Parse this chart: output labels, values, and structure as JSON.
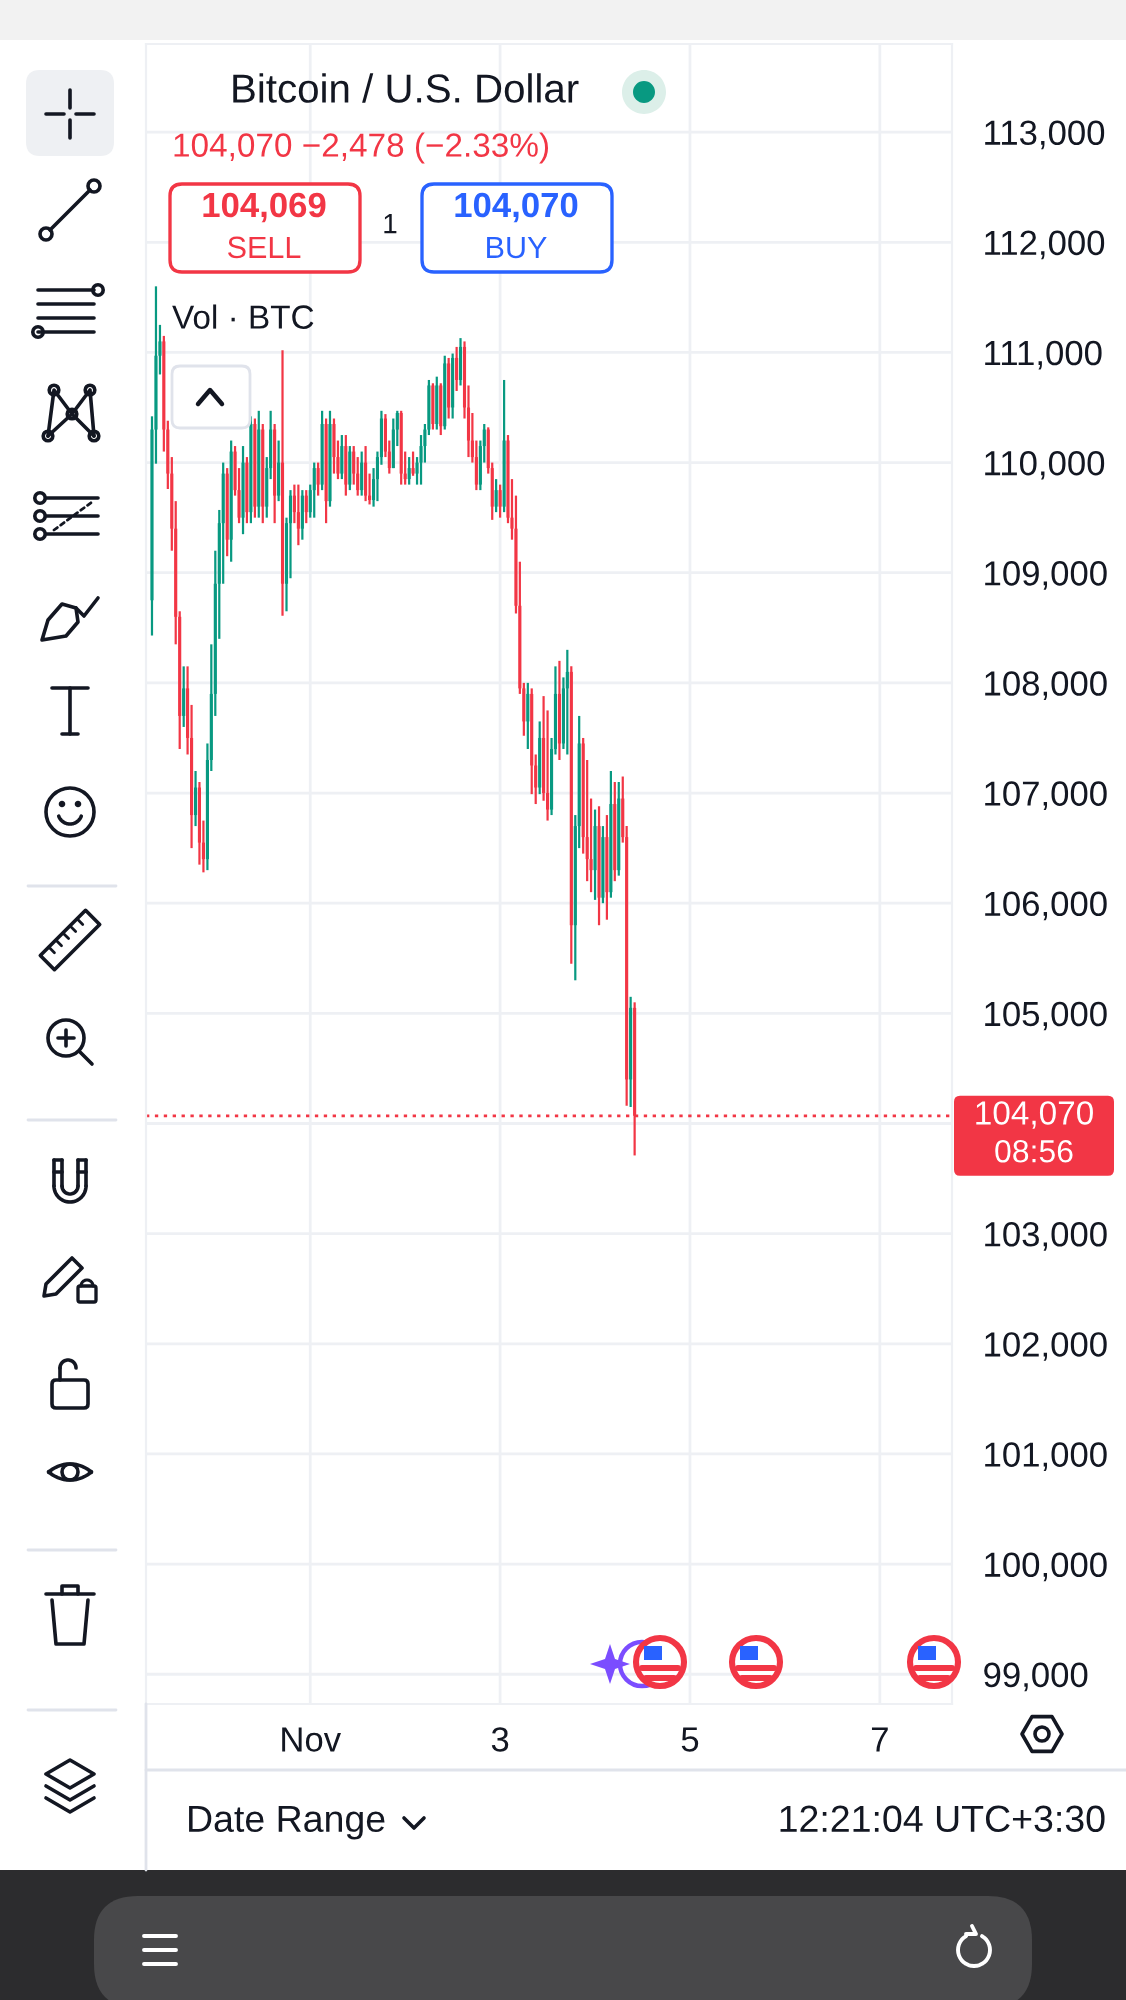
{
  "chart_data": {
    "type": "candlestick",
    "title": "Bitcoin / U.S. Dollar",
    "subtitle": "104,070 −2,478 (−2.33%)",
    "x": [
      -0.667,
      -0.625,
      -0.583,
      -0.542,
      -0.5,
      -0.458,
      -0.417,
      -0.375,
      -0.333,
      -0.292,
      -0.25,
      -0.208,
      -0.167,
      -0.125,
      -0.083,
      -0.042,
      0,
      0.042,
      0.083,
      0.125,
      0.167,
      0.208,
      0.25,
      0.292,
      0.333,
      0.375,
      0.417,
      0.458,
      0.5,
      0.542,
      0.583,
      0.625,
      0.667,
      0.708,
      0.75,
      0.792,
      0.833,
      0.875,
      0.917,
      0.958,
      1,
      1.042,
      1.083,
      1.125,
      1.167,
      1.208,
      1.25,
      1.292,
      1.333,
      1.375,
      1.417,
      1.458,
      1.5,
      1.542,
      1.583,
      1.625,
      1.667,
      1.708,
      1.75,
      1.792,
      1.833,
      1.875,
      1.917,
      1.958,
      2,
      2.042,
      2.083,
      2.125,
      2.167,
      2.208,
      2.25,
      2.292,
      2.333,
      2.375,
      2.417,
      2.458,
      2.5,
      2.542,
      2.583,
      2.625,
      2.667,
      2.708,
      2.75,
      2.792,
      2.833,
      2.875,
      2.917,
      2.958,
      3,
      3.042,
      3.083,
      3.125,
      3.167,
      3.208,
      3.25,
      3.292,
      3.333,
      3.375,
      3.417,
      3.458,
      3.5,
      3.542,
      3.583,
      3.625,
      3.667,
      3.708,
      3.75,
      3.792,
      3.833,
      3.875,
      3.917,
      3.958,
      4,
      4.042,
      4.083,
      4.125,
      4.167,
      4.208,
      4.25,
      4.292,
      4.333,
      4.375,
      4.417
    ],
    "ohlc": [
      [
        108750,
        110420,
        108430,
        110300
      ],
      [
        110300,
        111600,
        109990,
        110970
      ],
      [
        110970,
        111250,
        110800,
        111100
      ],
      [
        111100,
        111150,
        110100,
        110300
      ],
      [
        110300,
        110380,
        109760,
        109900
      ],
      [
        109900,
        110050,
        109200,
        109400
      ],
      [
        109400,
        109650,
        108350,
        108600
      ],
      [
        108600,
        108650,
        107400,
        107700
      ],
      [
        107700,
        108150,
        107600,
        107950
      ],
      [
        107950,
        108150,
        107350,
        107500
      ],
      [
        107500,
        107800,
        106500,
        106800
      ],
      [
        106800,
        107200,
        106700,
        107050
      ],
      [
        107050,
        107100,
        106350,
        106550
      ],
      [
        106550,
        106750,
        106280,
        106400
      ],
      [
        106400,
        107450,
        106300,
        107300
      ],
      [
        107300,
        108350,
        107200,
        107900
      ],
      [
        107900,
        109200,
        107700,
        108900
      ],
      [
        108900,
        109570,
        108400,
        109450
      ],
      [
        109450,
        110000,
        108900,
        109900
      ],
      [
        109900,
        109950,
        109150,
        109300
      ],
      [
        109300,
        110200,
        109100,
        110100
      ],
      [
        110100,
        110150,
        109700,
        109750
      ],
      [
        109750,
        109950,
        109450,
        109500
      ],
      [
        109500,
        110150,
        109350,
        110000
      ],
      [
        110000,
        110050,
        109450,
        109550
      ],
      [
        109550,
        110420,
        109450,
        110350
      ],
      [
        110350,
        110400,
        109500,
        109600
      ],
      [
        109600,
        110470,
        109500,
        110300
      ],
      [
        110300,
        110350,
        109450,
        109600
      ],
      [
        109600,
        110050,
        109500,
        109950
      ],
      [
        109950,
        110470,
        109850,
        110300
      ],
      [
        110300,
        110350,
        109450,
        109700
      ],
      [
        109700,
        110200,
        109650,
        110000
      ],
      [
        110000,
        111020,
        108610,
        108900
      ],
      [
        108900,
        109500,
        108650,
        109450
      ],
      [
        109450,
        109750,
        108950,
        109700
      ],
      [
        109700,
        109800,
        109450,
        109550
      ],
      [
        109550,
        109800,
        109250,
        109400
      ],
      [
        109400,
        109750,
        109300,
        109700
      ],
      [
        109700,
        109750,
        109450,
        109550
      ],
      [
        109550,
        109800,
        109500,
        109750
      ],
      [
        109750,
        110000,
        109500,
        109950
      ],
      [
        109950,
        110000,
        109700,
        109800
      ],
      [
        109800,
        110470,
        109750,
        110350
      ],
      [
        110350,
        110400,
        109450,
        109650
      ],
      [
        109650,
        110470,
        109600,
        110350
      ],
      [
        110350,
        110400,
        109900,
        110050
      ],
      [
        110050,
        110200,
        109850,
        109900
      ],
      [
        109900,
        110250,
        109850,
        110150
      ],
      [
        110150,
        110250,
        109700,
        109800
      ],
      [
        109800,
        110150,
        109750,
        110100
      ],
      [
        110100,
        110150,
        109800,
        109900
      ],
      [
        109900,
        110050,
        109700,
        109750
      ],
      [
        109750,
        110100,
        109700,
        110000
      ],
      [
        110000,
        110150,
        109650,
        109700
      ],
      [
        109700,
        109900,
        109620,
        109660
      ],
      [
        109660,
        109950,
        109600,
        109850
      ],
      [
        109850,
        110100,
        109650,
        110050
      ],
      [
        110050,
        110470,
        109980,
        110400
      ],
      [
        110400,
        110440,
        110050,
        110100
      ],
      [
        110100,
        110200,
        109900,
        109950
      ],
      [
        109950,
        110400,
        109950,
        110300
      ],
      [
        110300,
        110470,
        110150,
        110450
      ],
      [
        110450,
        110470,
        109800,
        109900
      ],
      [
        109900,
        110100,
        109800,
        109850
      ],
      [
        109850,
        110050,
        109800,
        109950
      ],
      [
        109950,
        110100,
        109880,
        109900
      ],
      [
        109900,
        110050,
        109800,
        110000
      ],
      [
        110000,
        110250,
        109800,
        110150
      ],
      [
        110150,
        110350,
        110000,
        110300
      ],
      [
        110300,
        110750,
        110250,
        110700
      ],
      [
        110700,
        110720,
        110300,
        110350
      ],
      [
        110350,
        110780,
        110300,
        110700
      ],
      [
        110700,
        110720,
        110250,
        110330
      ],
      [
        110330,
        110970,
        110300,
        110900
      ],
      [
        110900,
        110950,
        110400,
        110500
      ],
      [
        110500,
        110990,
        110400,
        110950
      ],
      [
        110950,
        111050,
        110650,
        110750
      ],
      [
        110750,
        111130,
        110700,
        111050
      ],
      [
        111050,
        111100,
        110400,
        110500
      ],
      [
        110500,
        110700,
        110050,
        110200
      ],
      [
        110200,
        110450,
        110000,
        110050
      ],
      [
        110050,
        110200,
        109750,
        109800
      ],
      [
        109800,
        110200,
        109750,
        110150
      ],
      [
        110150,
        110350,
        110000,
        110300
      ],
      [
        110300,
        110320,
        109900,
        109950
      ],
      [
        109950,
        110000,
        109480,
        109600
      ],
      [
        109600,
        109850,
        109550,
        109750
      ],
      [
        109750,
        109800,
        109500,
        109600
      ],
      [
        109600,
        110750,
        109550,
        110200
      ],
      [
        110200,
        110250,
        109450,
        109500
      ],
      [
        109500,
        109850,
        109300,
        109400
      ],
      [
        109400,
        109700,
        108630,
        108700
      ],
      [
        108700,
        109100,
        107900,
        107950
      ],
      [
        107950,
        108000,
        107520,
        107650
      ],
      [
        107650,
        108000,
        107400,
        107900
      ],
      [
        107900,
        107950,
        106990,
        107250
      ],
      [
        107250,
        107350,
        106900,
        107050
      ],
      [
        107050,
        107650,
        106990,
        107500
      ],
      [
        107500,
        107880,
        106930,
        107000
      ],
      [
        107000,
        107750,
        106750,
        106850
      ],
      [
        106850,
        107500,
        106800,
        107400
      ],
      [
        107400,
        108150,
        107350,
        107900
      ],
      [
        107900,
        108200,
        107300,
        107450
      ],
      [
        107450,
        108050,
        107400,
        107950
      ],
      [
        107950,
        108300,
        107350,
        108100
      ],
      [
        108100,
        108150,
        105450,
        105800
      ],
      [
        105800,
        106800,
        105300,
        106700
      ],
      [
        106700,
        107700,
        106500,
        107450
      ],
      [
        107450,
        107500,
        106450,
        106600
      ],
      [
        106600,
        107300,
        106200,
        106400
      ],
      [
        106400,
        106950,
        106100,
        106300
      ],
      [
        106300,
        106850,
        106030,
        106700
      ],
      [
        106700,
        106880,
        105800,
        106050
      ],
      [
        106050,
        106700,
        106000,
        106600
      ],
      [
        106600,
        106800,
        105850,
        106100
      ],
      [
        106100,
        107200,
        106050,
        106900
      ],
      [
        106900,
        107100,
        106200,
        106300
      ],
      [
        106300,
        107100,
        106250,
        106950
      ],
      [
        106950,
        107150,
        106550,
        106600
      ],
      [
        106600,
        106700,
        104160,
        104400
      ],
      [
        104400,
        105150,
        104150,
        105050
      ],
      [
        105050,
        105100,
        103710,
        104070
      ]
    ],
    "colors": [
      "#089981",
      "#089981",
      "#089981",
      "#f23645",
      "#f23645",
      "#f23645",
      "#f23645",
      "#f23645",
      "#089981",
      "#f23645",
      "#f23645",
      "#089981",
      "#f23645",
      "#f23645",
      "#089981",
      "#089981",
      "#089981",
      "#089981",
      "#089981",
      "#f23645",
      "#089981",
      "#f23645",
      "#f23645",
      "#089981",
      "#f23645",
      "#089981",
      "#f23645",
      "#089981",
      "#f23645",
      "#089981",
      "#089981",
      "#f23645",
      "#089981",
      "#f23645",
      "#089981",
      "#089981",
      "#f23645",
      "#f23645",
      "#089981",
      "#f23645",
      "#089981",
      "#089981",
      "#f23645",
      "#089981",
      "#f23645",
      "#089981",
      "#f23645",
      "#f23645",
      "#089981",
      "#f23645",
      "#089981",
      "#f23645",
      "#f23645",
      "#089981",
      "#f23645",
      "#f23645",
      "#089981",
      "#089981",
      "#089981",
      "#f23645",
      "#f23645",
      "#089981",
      "#089981",
      "#f23645",
      "#f23645",
      "#089981",
      "#f23645",
      "#089981",
      "#089981",
      "#089981",
      "#089981",
      "#f23645",
      "#089981",
      "#f23645",
      "#089981",
      "#f23645",
      "#089981",
      "#f23645",
      "#089981",
      "#f23645",
      "#f23645",
      "#f23645",
      "#f23645",
      "#089981",
      "#089981",
      "#f23645",
      "#f23645",
      "#089981",
      "#f23645",
      "#089981",
      "#f23645",
      "#f23645",
      "#f23645",
      "#f23645",
      "#f23645",
      "#089981",
      "#f23645",
      "#f23645",
      "#089981",
      "#f23645",
      "#f23645",
      "#089981",
      "#089981",
      "#f23645",
      "#089981",
      "#089981",
      "#f23645",
      "#089981",
      "#089981",
      "#f23645",
      "#f23645",
      "#f23645",
      "#089981",
      "#f23645",
      "#089981",
      "#f23645",
      "#089981",
      "#f23645",
      "#089981",
      "#f23645",
      "#f23645",
      "#089981",
      "#f23645"
    ],
    "xlim": [
      -0.73,
      7.76
    ],
    "xticks": [
      {
        "value": 1,
        "label": "Nov"
      },
      3,
      5,
      7
    ],
    "ylim": [
      98730,
      113800
    ],
    "yticks": [
      {
        "value": 99000,
        "label": "99,000"
      },
      {
        "value": 100000,
        "label": "100,000"
      },
      {
        "value": 101000,
        "label": "101,000"
      },
      {
        "value": 102000,
        "label": "102,000"
      },
      {
        "value": 103000,
        "label": "103,000"
      },
      {
        "value": 104000,
        "label": null
      },
      {
        "value": 105000,
        "label": "105,000"
      },
      {
        "value": 106000,
        "label": "106,000"
      },
      {
        "value": 107000,
        "label": "107,000"
      },
      {
        "value": 108000,
        "label": "108,000"
      },
      {
        "value": 109000,
        "label": "109,000"
      },
      {
        "value": 110000,
        "label": "110,000"
      },
      {
        "value": 111000,
        "label": "111,000"
      },
      {
        "value": 112000,
        "label": "112,000"
      },
      {
        "value": 113000,
        "label": "113,000"
      }
    ],
    "grid": true,
    "ref_lines": [
      {
        "axis": "y",
        "value": 104070,
        "label": "104,070",
        "color": "#f23645",
        "line_style": "dotted"
      }
    ],
    "annotations": [
      "104,069",
      "SELL",
      "1",
      "104,070",
      "BUY",
      "Vol · BTC",
      "08:56",
      "Date Range",
      "12:21:04 UTC+3:30"
    ]
  }
}
